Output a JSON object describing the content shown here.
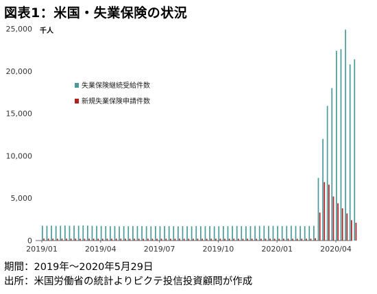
{
  "title": "図表1：米国・失業保険の状況",
  "footer": {
    "period": "期間：2019年～2020年5月29日",
    "source": "出所：米国労働省の統計よりピクテ投信投資顧問が作成"
  },
  "chart_data": {
    "type": "bar",
    "unit_label": "千人",
    "ylim": [
      0,
      25000
    ],
    "y_ticks": [
      "0",
      "5,000",
      "10,000",
      "15,000",
      "20,000",
      "25,000"
    ],
    "x_ticks": [
      "2019/01",
      "2019/04",
      "2019/07",
      "2019/10",
      "2020/01",
      "2020/04"
    ],
    "legend_position": "upper-left",
    "grid": false,
    "series": [
      {
        "name": "失業保険継続受給件数",
        "color": "#4a9a9a",
        "values": [
          1750,
          1740,
          1760,
          1730,
          1750,
          1770,
          1740,
          1760,
          1750,
          1780,
          1760,
          1740,
          1730,
          1720,
          1700,
          1690,
          1710,
          1680,
          1700,
          1690,
          1700,
          1710,
          1700,
          1690,
          1680,
          1700,
          1690,
          1710,
          1700,
          1690,
          1680,
          1700,
          1690,
          1680,
          1700,
          1690,
          1690,
          1700,
          1680,
          1690,
          1700,
          1690,
          1720,
          1710,
          1700,
          1690,
          1700,
          1720,
          1730,
          1740,
          1720,
          1730,
          1720,
          1710,
          1730,
          1740,
          1720,
          1710,
          1700,
          1720,
          1740,
          7400,
          12000,
          15900,
          18000,
          22400,
          22600,
          24900,
          20800,
          21400
        ]
      },
      {
        "name": "新規失業保険申請件数",
        "color": "#b02020",
        "values": [
          230,
          225,
          220,
          215,
          225,
          220,
          230,
          225,
          215,
          210,
          220,
          225,
          215,
          210,
          220,
          215,
          225,
          220,
          215,
          210,
          220,
          215,
          210,
          220,
          215,
          210,
          215,
          220,
          210,
          215,
          220,
          215,
          210,
          215,
          220,
          215,
          210,
          215,
          220,
          215,
          210,
          215,
          220,
          215,
          210,
          215,
          220,
          215,
          210,
          215,
          220,
          215,
          210,
          215,
          220,
          215,
          210,
          215,
          220,
          215,
          280,
          3300,
          6900,
          6600,
          5200,
          4400,
          3800,
          3200,
          2400,
          2100
        ]
      }
    ]
  }
}
